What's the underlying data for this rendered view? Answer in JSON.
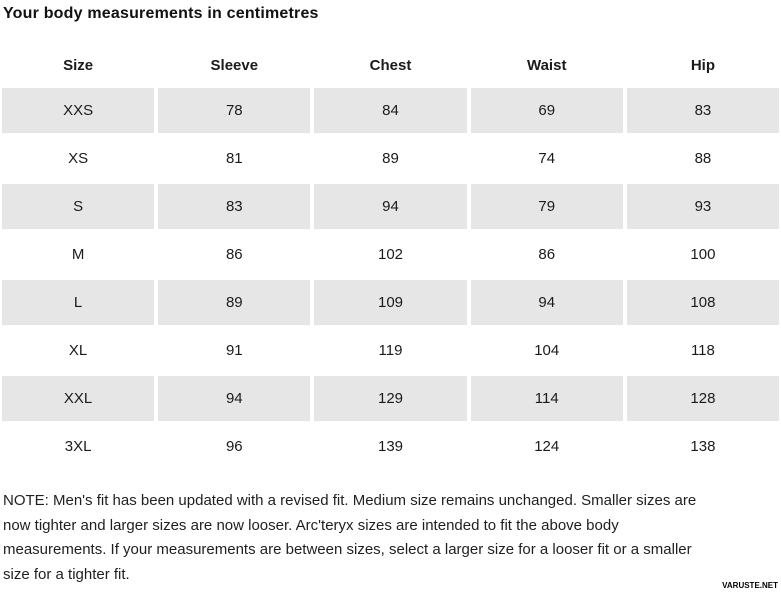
{
  "title": "Your body measurements in centimetres",
  "chart_data": {
    "type": "table",
    "title": "Your body measurements in centimetres",
    "columns": [
      "Size",
      "Sleeve",
      "Chest",
      "Waist",
      "Hip"
    ],
    "rows": [
      [
        "XXS",
        "78",
        "84",
        "69",
        "83"
      ],
      [
        "XS",
        "81",
        "89",
        "74",
        "88"
      ],
      [
        "S",
        "83",
        "94",
        "79",
        "93"
      ],
      [
        "M",
        "86",
        "102",
        "86",
        "100"
      ],
      [
        "L",
        "89",
        "109",
        "94",
        "108"
      ],
      [
        "XL",
        "91",
        "119",
        "104",
        "118"
      ],
      [
        "XXL",
        "94",
        "129",
        "114",
        "128"
      ],
      [
        "3XL",
        "96",
        "139",
        "124",
        "138"
      ]
    ],
    "shaded_row_indices": [
      0,
      2,
      4,
      6
    ],
    "layout": {
      "column_alignment": "center",
      "striped": true
    }
  },
  "note": {
    "lines": [
      "NOTE: Men's fit has been updated with a revised fit. Medium size remains unchanged. Smaller sizes are",
      "now tighter and larger sizes are now looser. Arc'teryx sizes are intended to fit the above body",
      "measurements. If your measurements are between sizes, select a larger size for a looser fit or a smaller",
      "size for a tighter fit."
    ]
  },
  "watermark": "VARUSTE.NET",
  "colors": {
    "row_shade": "#e6e6e6",
    "text_primary": "#1b1b1b",
    "background": "#ffffff"
  }
}
